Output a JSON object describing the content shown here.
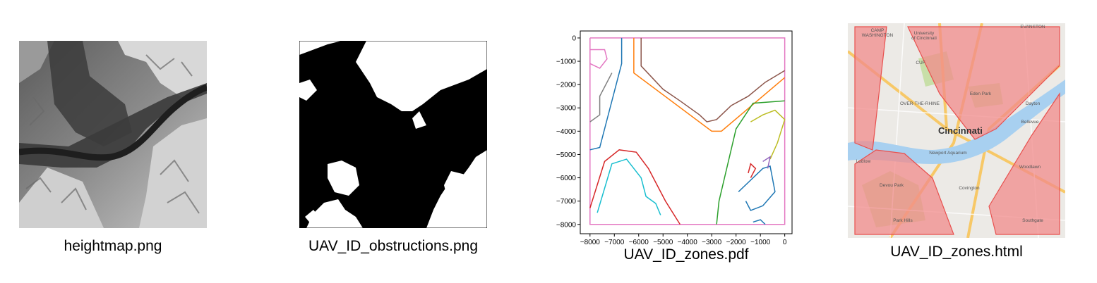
{
  "captions": {
    "heightmap": "heightmap.png",
    "obstructions": "UAV_ID_obstructions.png",
    "zones_pdf": "UAV_ID_zones.pdf",
    "zones_html": "UAV_ID_zones.html"
  },
  "chart_data": {
    "type": "line",
    "title": "",
    "xlabel": "",
    "ylabel": "",
    "xlim": [
      -8400,
      300
    ],
    "ylim": [
      -8400,
      300
    ],
    "x_ticks": [
      "−8000",
      "−7000",
      "−6000",
      "−5000",
      "−4000",
      "−3000",
      "−2000",
      "−1000",
      "0"
    ],
    "y_ticks": [
      "0",
      "−1000",
      "−2000",
      "−3000",
      "−4000",
      "−5000",
      "−6000",
      "−7000",
      "−8000"
    ],
    "grid": false,
    "series": [
      {
        "color": "#e377c2",
        "points": [
          [
            -8000,
            0
          ],
          [
            0,
            0
          ],
          [
            0,
            -8000
          ],
          [
            -8000,
            -8000
          ],
          [
            -8000,
            0
          ]
        ]
      },
      {
        "color": "#ff7f0e",
        "points": [
          [
            -6200,
            0
          ],
          [
            -6200,
            -1500
          ],
          [
            -3000,
            -4000
          ],
          [
            -2600,
            -4000
          ],
          [
            0,
            -1700
          ]
        ]
      },
      {
        "color": "#8c564b",
        "points": [
          [
            -5900,
            0
          ],
          [
            -5900,
            -1200
          ],
          [
            -5000,
            -2200
          ],
          [
            -4300,
            -2700
          ],
          [
            -3500,
            -3300
          ],
          [
            -3200,
            -3600
          ],
          [
            -2800,
            -3500
          ],
          [
            -2200,
            -2900
          ],
          [
            -1500,
            -2500
          ],
          [
            -800,
            -1900
          ],
          [
            0,
            -1400
          ]
        ]
      },
      {
        "color": "#1f77b4",
        "points": [
          [
            -6700,
            0
          ],
          [
            -6700,
            -1100
          ],
          [
            -7600,
            -4700
          ],
          [
            -8000,
            -4800
          ]
        ]
      },
      {
        "color": "#7f7f7f",
        "points": [
          [
            -7100,
            -1500
          ],
          [
            -7600,
            -2500
          ],
          [
            -7600,
            -3300
          ],
          [
            -8000,
            -3600
          ]
        ]
      },
      {
        "color": "#e377c2",
        "points": [
          [
            -8000,
            -500
          ],
          [
            -7400,
            -500
          ],
          [
            -7300,
            -900
          ],
          [
            -7600,
            -1300
          ],
          [
            -8000,
            -1100
          ]
        ]
      },
      {
        "color": "#d62728",
        "points": [
          [
            -8000,
            -7300
          ],
          [
            -7400,
            -5300
          ],
          [
            -6800,
            -4800
          ],
          [
            -6100,
            -4900
          ],
          [
            -5600,
            -5600
          ],
          [
            -4900,
            -7000
          ],
          [
            -4300,
            -8000
          ]
        ]
      },
      {
        "color": "#17becf",
        "points": [
          [
            -7700,
            -7500
          ],
          [
            -7100,
            -5400
          ],
          [
            -6500,
            -5200
          ],
          [
            -5900,
            -6000
          ],
          [
            -5700,
            -6800
          ],
          [
            -5300,
            -7100
          ],
          [
            -5100,
            -7600
          ]
        ]
      },
      {
        "color": "#2ca02c",
        "points": [
          [
            -2800,
            -8000
          ],
          [
            -2700,
            -7000
          ],
          [
            -2000,
            -3900
          ],
          [
            -1300,
            -2800
          ],
          [
            0,
            -2700
          ]
        ]
      },
      {
        "color": "#bcbd22",
        "points": [
          [
            -1400,
            -3600
          ],
          [
            -900,
            -3300
          ],
          [
            -400,
            -3100
          ],
          [
            0,
            -3500
          ],
          [
            -300,
            -4500
          ],
          [
            -600,
            -5200
          ]
        ]
      },
      {
        "color": "#1f77b4",
        "points": [
          [
            -1900,
            -6600
          ],
          [
            -1400,
            -6100
          ],
          [
            -900,
            -5600
          ],
          [
            -600,
            -5500
          ],
          [
            -400,
            -6600
          ],
          [
            -900,
            -7200
          ],
          [
            -1400,
            -7400
          ],
          [
            -1600,
            -7000
          ]
        ]
      },
      {
        "color": "#d62728",
        "points": [
          [
            -1500,
            -5800
          ],
          [
            -1400,
            -5400
          ],
          [
            -1200,
            -5600
          ],
          [
            -1400,
            -6000
          ]
        ]
      },
      {
        "color": "#9467bd",
        "points": [
          [
            -900,
            -5300
          ],
          [
            -600,
            -5100
          ],
          [
            -700,
            -5600
          ]
        ]
      },
      {
        "color": "#1f77b4",
        "points": [
          [
            -1300,
            -7900
          ],
          [
            -1000,
            -7800
          ],
          [
            -800,
            -8000
          ]
        ]
      }
    ]
  },
  "map": {
    "city_label": "Cincinnati",
    "labels": [
      {
        "text": "CAMP\nWASHINGTON"
      },
      {
        "text": "University\nof Cincinnati"
      },
      {
        "text": "EVANSTON"
      },
      {
        "text": "CUF"
      },
      {
        "text": "Eden Park"
      },
      {
        "text": "OVER-THE-RHINE"
      },
      {
        "text": "Newport Aquarium"
      },
      {
        "text": "Dayton"
      },
      {
        "text": "Bellevue"
      },
      {
        "text": "Ludlow"
      },
      {
        "text": "Devou Park"
      },
      {
        "text": "Covington"
      },
      {
        "text": "Woodlawn"
      },
      {
        "text": "Park Hills"
      },
      {
        "text": "Southgate"
      }
    ],
    "colors": {
      "land": "#eceae6",
      "water": "#a8d0f0",
      "zone_fill": "#f28b8b",
      "zone_stroke": "#e8504e",
      "park": "#c8dfa8",
      "road": "#f7c867"
    }
  }
}
